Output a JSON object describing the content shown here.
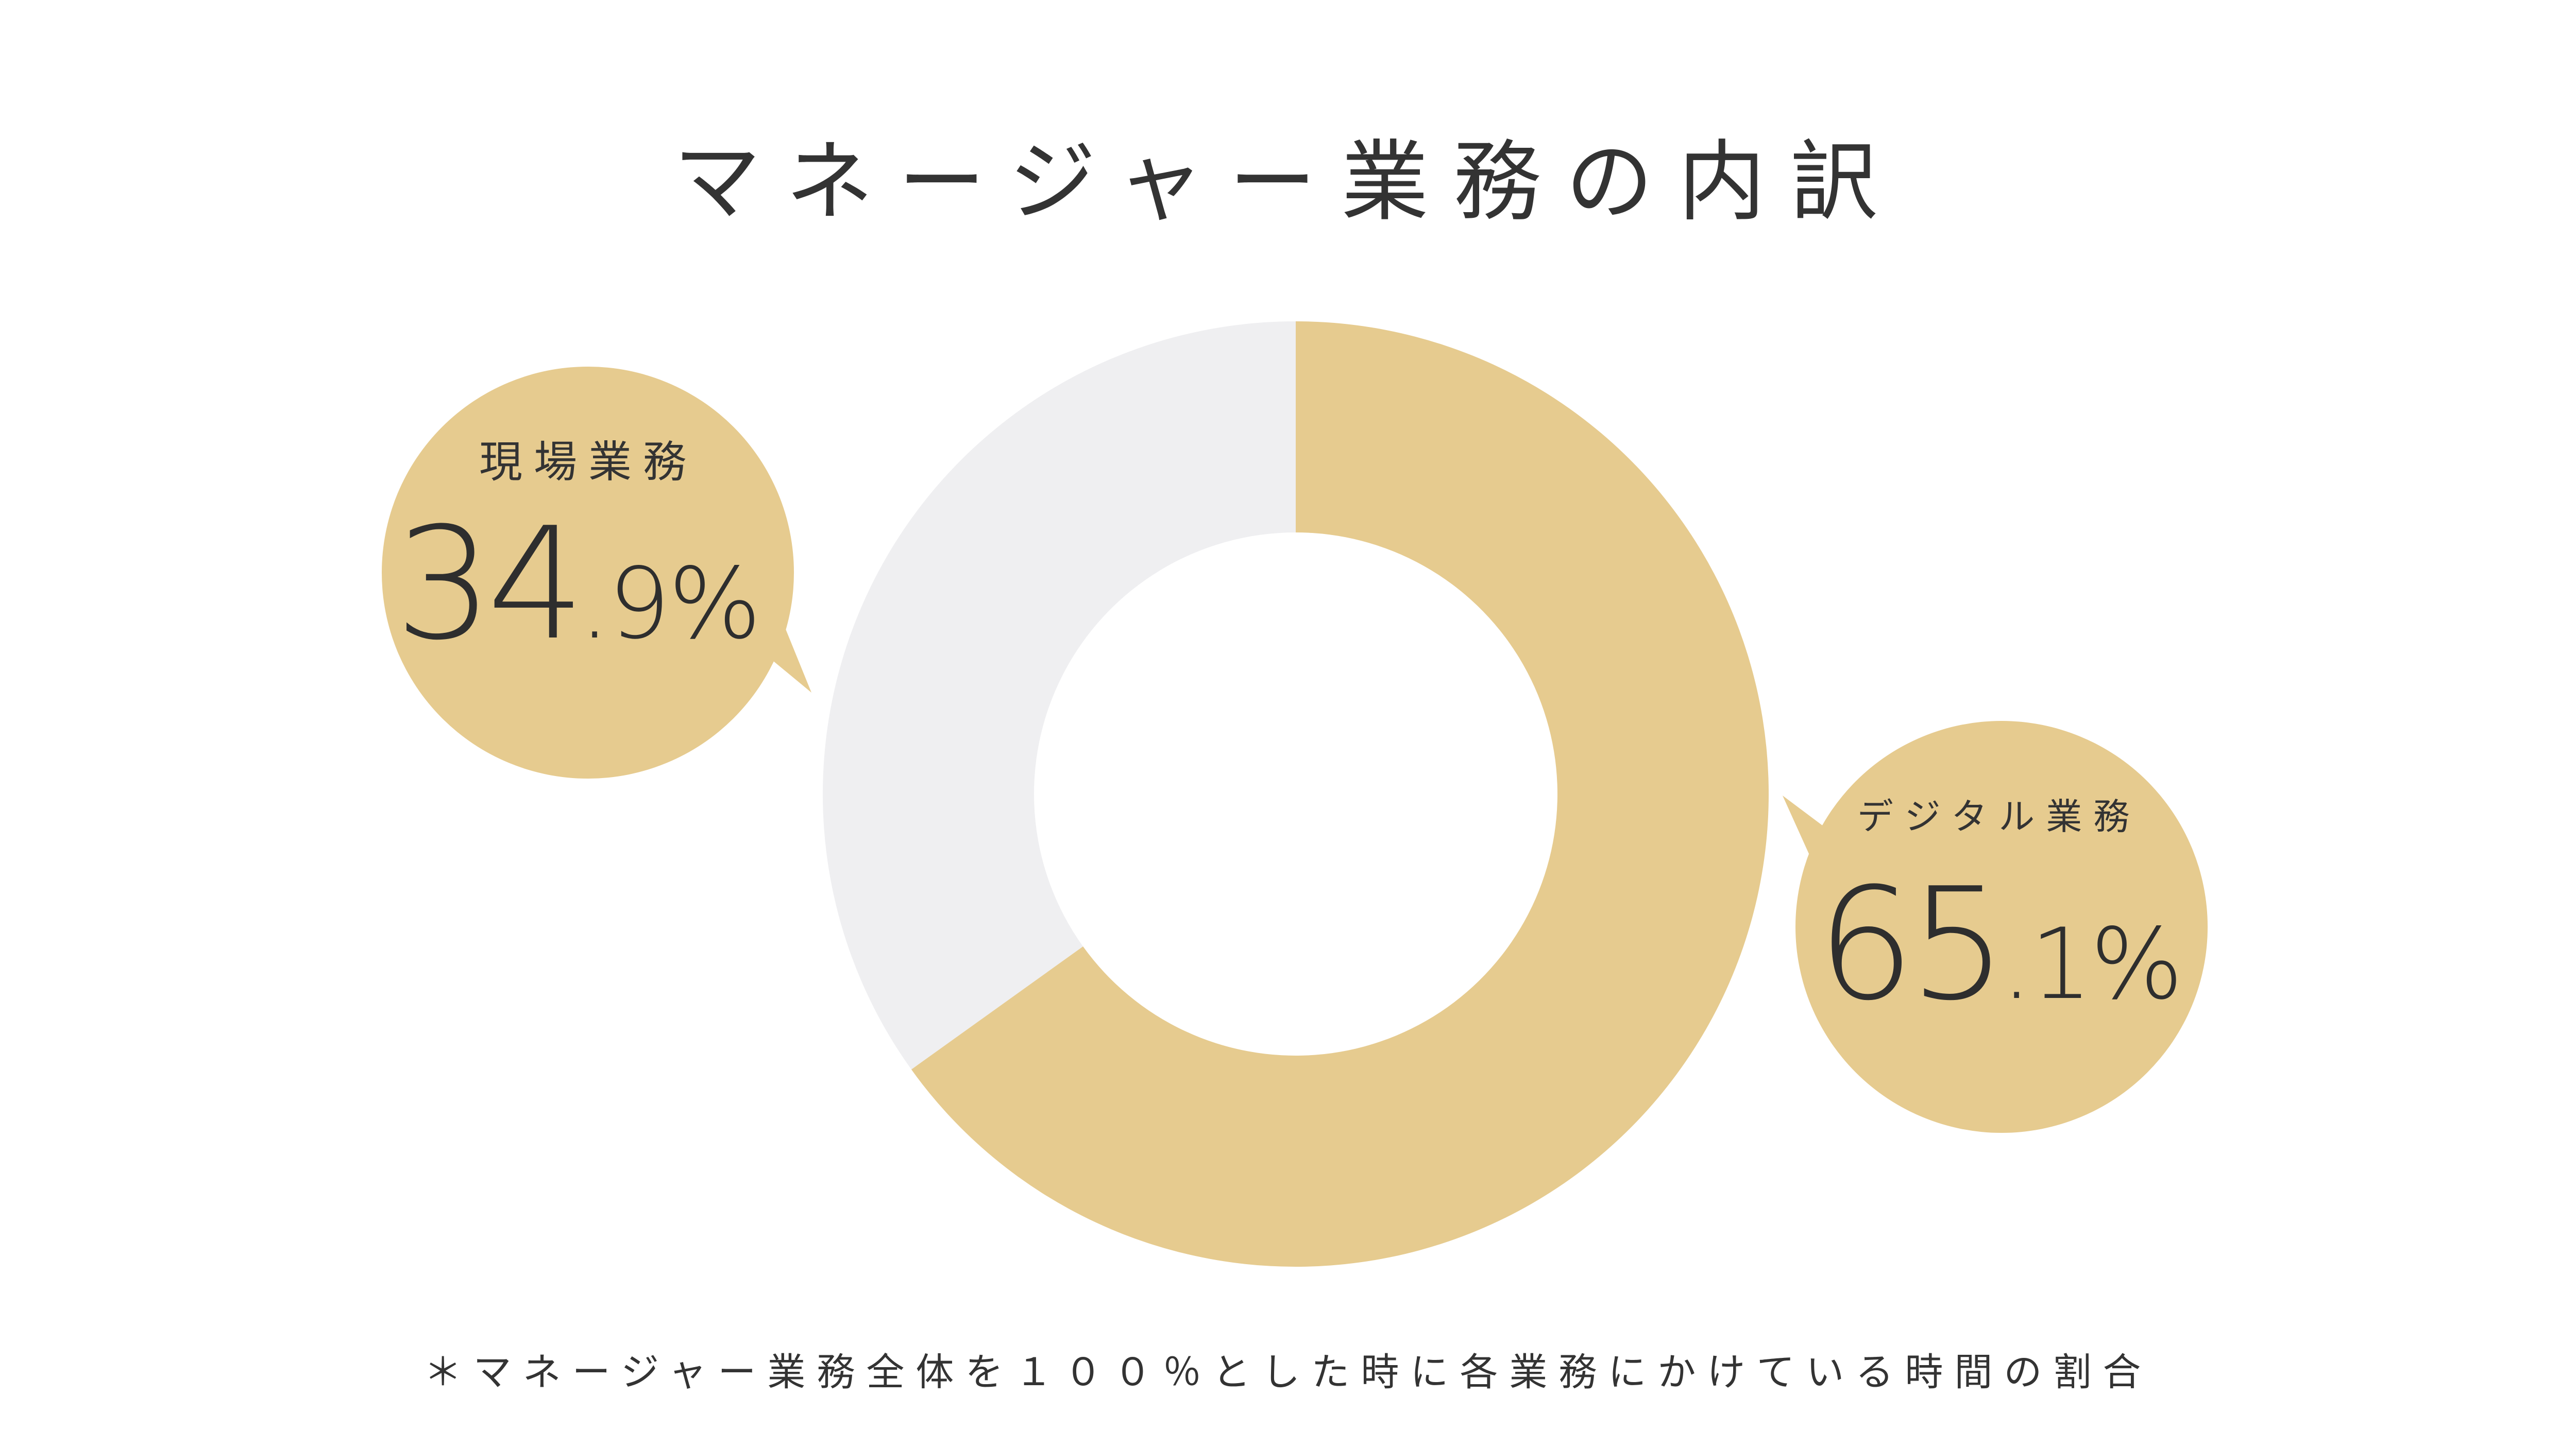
{
  "title": "マネージャー業務の内訳",
  "footnote": "＊マネージャー業務全体を１００％とした時に各業務にかけている時間の割合",
  "colors": {
    "accent": "#e6cb8f",
    "secondary": "#efeff1",
    "text": "#333333"
  },
  "chart_data": {
    "type": "pie",
    "variant": "donut",
    "start": "top, clockwise",
    "slices": [
      {
        "label": "デジタル業務",
        "value": 65.1,
        "value_int": "65",
        "value_dec": ".1%",
        "color": "#e6cb8f"
      },
      {
        "label": "現場業務",
        "value": 34.9,
        "value_int": "34",
        "value_dec": ".9%",
        "color": "#efeff1"
      }
    ]
  }
}
